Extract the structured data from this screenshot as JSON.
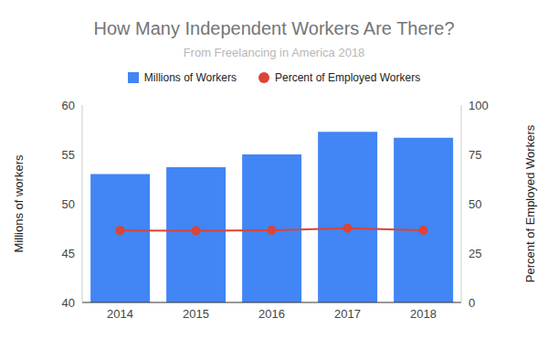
{
  "chart_data": {
    "type": "bar",
    "title": "How Many Independent Workers Are There?",
    "subtitle": "From Freelancing in America 2018",
    "categories": [
      "2014",
      "2015",
      "2016",
      "2017",
      "2018"
    ],
    "series": [
      {
        "name": "Millions of Workers",
        "type": "bar",
        "color": "#4285f4",
        "values": [
          53,
          53.7,
          55,
          57.3,
          56.7
        ]
      },
      {
        "name": "Percent of Employed Workers",
        "type": "line",
        "color": "#db4437",
        "marker": "circle",
        "axis": "y2",
        "values": [
          36.5,
          36.3,
          36.6,
          37.6,
          36.6
        ]
      }
    ],
    "ylabel": "Millions of workers",
    "y2label": "Percent of Employed Workers",
    "ylim": [
      40,
      60
    ],
    "yticks": [
      40,
      45,
      50,
      55,
      60
    ],
    "y2lim": [
      0,
      100
    ],
    "y2ticks": [
      0,
      25,
      50,
      75,
      100
    ],
    "grid": false,
    "legend": "top"
  }
}
